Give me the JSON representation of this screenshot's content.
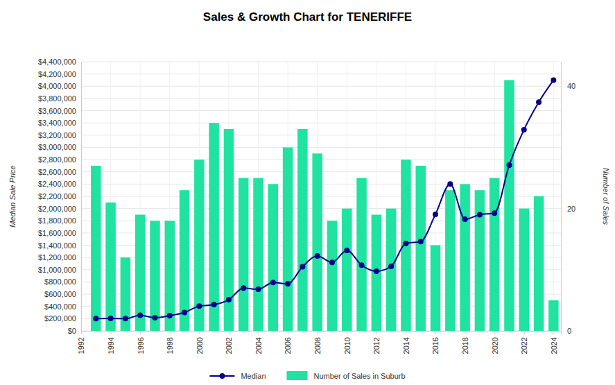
{
  "chart_data": {
    "type": "bar",
    "title": "Sales & Growth Chart for TENERIFFE",
    "ylabel": "Median Sale Price",
    "y2label": "Number of Sales",
    "x": [
      1993,
      1994,
      1995,
      1996,
      1997,
      1998,
      1999,
      2000,
      2001,
      2002,
      2003,
      2004,
      2005,
      2006,
      2007,
      2008,
      2009,
      2010,
      2011,
      2012,
      2013,
      2014,
      2015,
      2016,
      2017,
      2018,
      2019,
      2020,
      2021,
      2022,
      2023,
      2024
    ],
    "series": [
      {
        "name": "Median",
        "type": "line",
        "color": "#00008b",
        "marker": "circle",
        "values": [
          200000,
          205000,
          200000,
          255000,
          215000,
          250000,
          300000,
          405000,
          430000,
          510000,
          700000,
          680000,
          790000,
          770000,
          1050000,
          1225000,
          1120000,
          1315000,
          1075000,
          975000,
          1055000,
          1430000,
          1460000,
          1905000,
          2400000,
          1825000,
          1900000,
          1925000,
          2710000,
          3290000,
          3740000,
          4100000
        ]
      },
      {
        "name": "Number of Sales in Suburb",
        "type": "bar",
        "axis": "y2",
        "color": "#20e3a1",
        "values": [
          27,
          21,
          12,
          19,
          18,
          18,
          23,
          28,
          34,
          33,
          25,
          25,
          24,
          30,
          33,
          29,
          18,
          20,
          25,
          19,
          20,
          28,
          27,
          14,
          23,
          24,
          23,
          25,
          41,
          20,
          22,
          5
        ]
      }
    ],
    "xlim": [
      1992,
      2024.5
    ],
    "xticks": [
      1992,
      1994,
      1996,
      1998,
      2000,
      2002,
      2004,
      2006,
      2008,
      2010,
      2012,
      2014,
      2016,
      2018,
      2020,
      2022,
      2024
    ],
    "ylim": [
      0,
      4400000
    ],
    "yticks": [
      {
        "value": 0,
        "label": "$0"
      },
      {
        "value": 200000,
        "label": "$200,000"
      },
      {
        "value": 400000,
        "label": "$400,000"
      },
      {
        "value": 600000,
        "label": "$600,000"
      },
      {
        "value": 800000,
        "label": "$800,000"
      },
      {
        "value": 1000000,
        "label": "$1,000,000"
      },
      {
        "value": 1200000,
        "label": "$1,200,000"
      },
      {
        "value": 1400000,
        "label": "$1,400,000"
      },
      {
        "value": 1600000,
        "label": "$1,600,000"
      },
      {
        "value": 1800000,
        "label": "$1,800,000"
      },
      {
        "value": 2000000,
        "label": "$2,000,000"
      },
      {
        "value": 2200000,
        "label": "$2,200,000"
      },
      {
        "value": 2400000,
        "label": "$2,400,000"
      },
      {
        "value": 2600000,
        "label": "$2,600,000"
      },
      {
        "value": 2800000,
        "label": "$2,800,000"
      },
      {
        "value": 3000000,
        "label": "$3,000,000"
      },
      {
        "value": 3200000,
        "label": "$3,200,000"
      },
      {
        "value": 3400000,
        "label": "$3,400,000"
      },
      {
        "value": 3600000,
        "label": "$3,600,000"
      },
      {
        "value": 3800000,
        "label": "$3,800,000"
      },
      {
        "value": 4000000,
        "label": "$4,000,000"
      },
      {
        "value": 4200000,
        "label": "$4,200,000"
      },
      {
        "value": 4400000,
        "label": "$4,400,000"
      }
    ],
    "y2lim": [
      0,
      44
    ],
    "y2ticks": [
      0,
      20,
      40
    ],
    "grid": true,
    "legend": "bottom"
  }
}
